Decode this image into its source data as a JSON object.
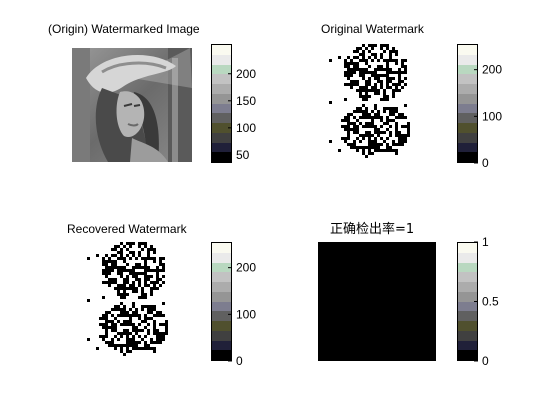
{
  "figure": {
    "panels": [
      {
        "id": "watermarked-image",
        "title": "(Origin) Watermarked Image",
        "content": "grayscale-photo",
        "colorbar": {
          "ticks": [
            50,
            100,
            150,
            200
          ],
          "ylim": [
            35,
            255
          ]
        }
      },
      {
        "id": "original-watermark",
        "title": "Original Watermark",
        "content": "binary-watermark",
        "colorbar": {
          "ticks": [
            0,
            100,
            200
          ],
          "ylim": [
            0,
            255
          ]
        }
      },
      {
        "id": "recovered-watermark",
        "title": "Recovered Watermark",
        "content": "binary-watermark",
        "colorbar": {
          "ticks": [
            0,
            100,
            200
          ],
          "ylim": [
            0,
            255
          ]
        }
      },
      {
        "id": "detection-result",
        "title": "正确检出率=1",
        "content": "solid-black",
        "colorbar": {
          "ticks": [
            0,
            0.5,
            1
          ],
          "ylim": [
            0,
            1
          ]
        }
      }
    ],
    "colormap": [
      "#000000",
      "#202039",
      "#404040",
      "#50502e",
      "#606060",
      "#7d7d8f",
      "#959595",
      "#acacac",
      "#c2c2c2",
      "#b9d8c0",
      "#eaeaea",
      "#fafaf0"
    ]
  }
}
